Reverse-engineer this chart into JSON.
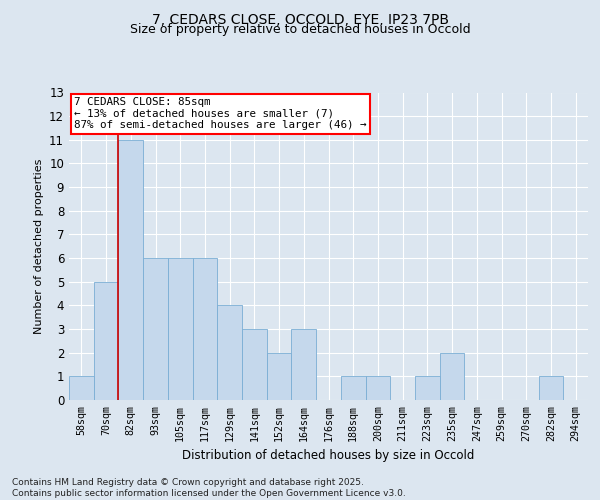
{
  "title_line1": "7, CEDARS CLOSE, OCCOLD, EYE, IP23 7PB",
  "title_line2": "Size of property relative to detached houses in Occold",
  "xlabel": "Distribution of detached houses by size in Occold",
  "ylabel": "Number of detached properties",
  "categories": [
    "58sqm",
    "70sqm",
    "82sqm",
    "93sqm",
    "105sqm",
    "117sqm",
    "129sqm",
    "141sqm",
    "152sqm",
    "164sqm",
    "176sqm",
    "188sqm",
    "200sqm",
    "211sqm",
    "223sqm",
    "235sqm",
    "247sqm",
    "259sqm",
    "270sqm",
    "282sqm",
    "294sqm"
  ],
  "values": [
    1,
    5,
    11,
    6,
    6,
    6,
    4,
    3,
    2,
    3,
    0,
    1,
    1,
    0,
    1,
    2,
    0,
    0,
    0,
    1,
    0
  ],
  "bar_color": "#c5d8ec",
  "bar_edge_color": "#7aadd4",
  "highlight_color": "#cc0000",
  "highlight_index": 2,
  "annotation_text": "7 CEDARS CLOSE: 85sqm\n← 13% of detached houses are smaller (7)\n87% of semi-detached houses are larger (46) →",
  "ylim": [
    0,
    13
  ],
  "yticks": [
    0,
    1,
    2,
    3,
    4,
    5,
    6,
    7,
    8,
    9,
    10,
    11,
    12,
    13
  ],
  "footer": "Contains HM Land Registry data © Crown copyright and database right 2025.\nContains public sector information licensed under the Open Government Licence v3.0.",
  "bg_color": "#dce6f0",
  "plot_bg_color": "#dce6f0",
  "grid_color": "#ffffff"
}
